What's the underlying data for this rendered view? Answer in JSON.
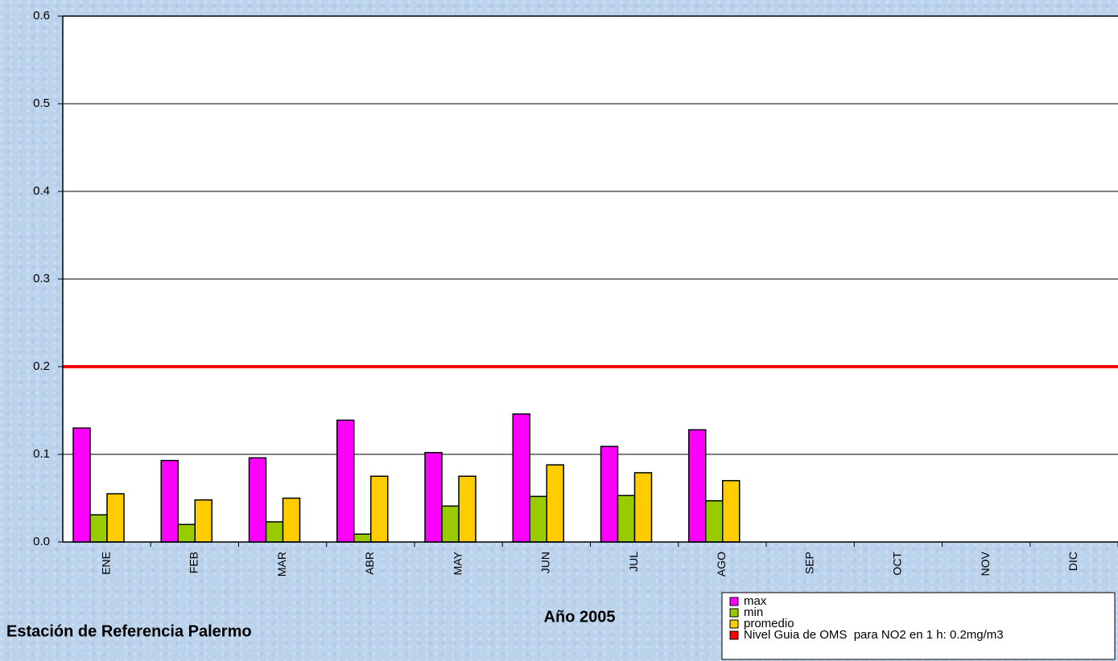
{
  "chart_data": {
    "type": "bar",
    "xlabel": "Año 2005",
    "annotation": "Estación de Referencia Palermo",
    "categories": [
      "ENE",
      "FEB",
      "MAR",
      "ABR",
      "MAY",
      "JUN",
      "JUL",
      "AGO",
      "SEP",
      "OCT",
      "NOV",
      "DIC"
    ],
    "series": [
      {
        "name": "max",
        "color": "#ff00ff",
        "values": [
          0.13,
          0.093,
          0.096,
          0.139,
          0.102,
          0.146,
          0.109,
          0.128,
          null,
          null,
          null,
          null
        ]
      },
      {
        "name": "min",
        "color": "#99cc00",
        "values": [
          0.031,
          0.02,
          0.023,
          0.009,
          0.041,
          0.052,
          0.053,
          0.047,
          null,
          null,
          null,
          null
        ]
      },
      {
        "name": "promedio",
        "color": "#ffcc00",
        "values": [
          0.055,
          0.048,
          0.05,
          0.075,
          0.075,
          0.088,
          0.079,
          0.07,
          null,
          null,
          null,
          null
        ]
      }
    ],
    "reference_line": {
      "name": "Nivel Guia de OMS  para NO2 en 1 h: 0.2mg/m3",
      "value": 0.2,
      "color": "#ff0000"
    },
    "ylim": [
      0,
      0.6
    ],
    "yticks": [
      {
        "value": 0,
        "label": "0.0"
      },
      0.1,
      0.2,
      0.3,
      0.4,
      0.5,
      0.6
    ],
    "grid": true,
    "legend": "bottom-right"
  }
}
